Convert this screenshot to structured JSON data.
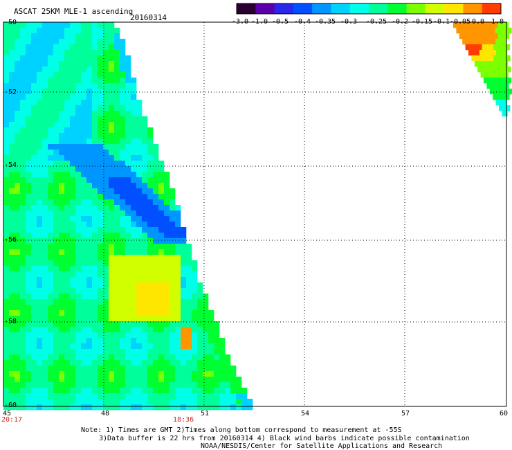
{
  "header": {
    "title": "ASCAT 25KM MLE-1 ascending",
    "date": "20160314"
  },
  "colorbar": {
    "labels": [
      "-3.0",
      "-1.0",
      "-0.5",
      "-0.4",
      "-0.35",
      "-0.3",
      "-0.25",
      "-0.2",
      "-0.15",
      "-0.1",
      "-0.05",
      "0.0",
      "1.0"
    ],
    "colors": [
      "#2a0030",
      "#5a00a8",
      "#2a28e8",
      "#0050ff",
      "#0096ff",
      "#00d2ff",
      "#00ffe6",
      "#00ff9a",
      "#00ff32",
      "#7cff00",
      "#d2ff00",
      "#ffe600",
      "#ff9600",
      "#ff3c00"
    ]
  },
  "axes": {
    "y_ticks": [
      "-50",
      "-52",
      "-54",
      "-56",
      "-58",
      "-60"
    ],
    "x_ticks": [
      "45",
      "48",
      "51",
      "54",
      "57",
      "60"
    ]
  },
  "time_labels": [
    "20:17",
    "18:36"
  ],
  "notes": [
    "Note: 1) Times are GMT 2)Times along bottom correspond to measurement at -55S",
    "3)Data buffer is 22 hrs from 20160314 4) Black wind barbs indicate possible contamination",
    "NOAA/NESDIS/Center for Satellite Applications and Research"
  ]
}
